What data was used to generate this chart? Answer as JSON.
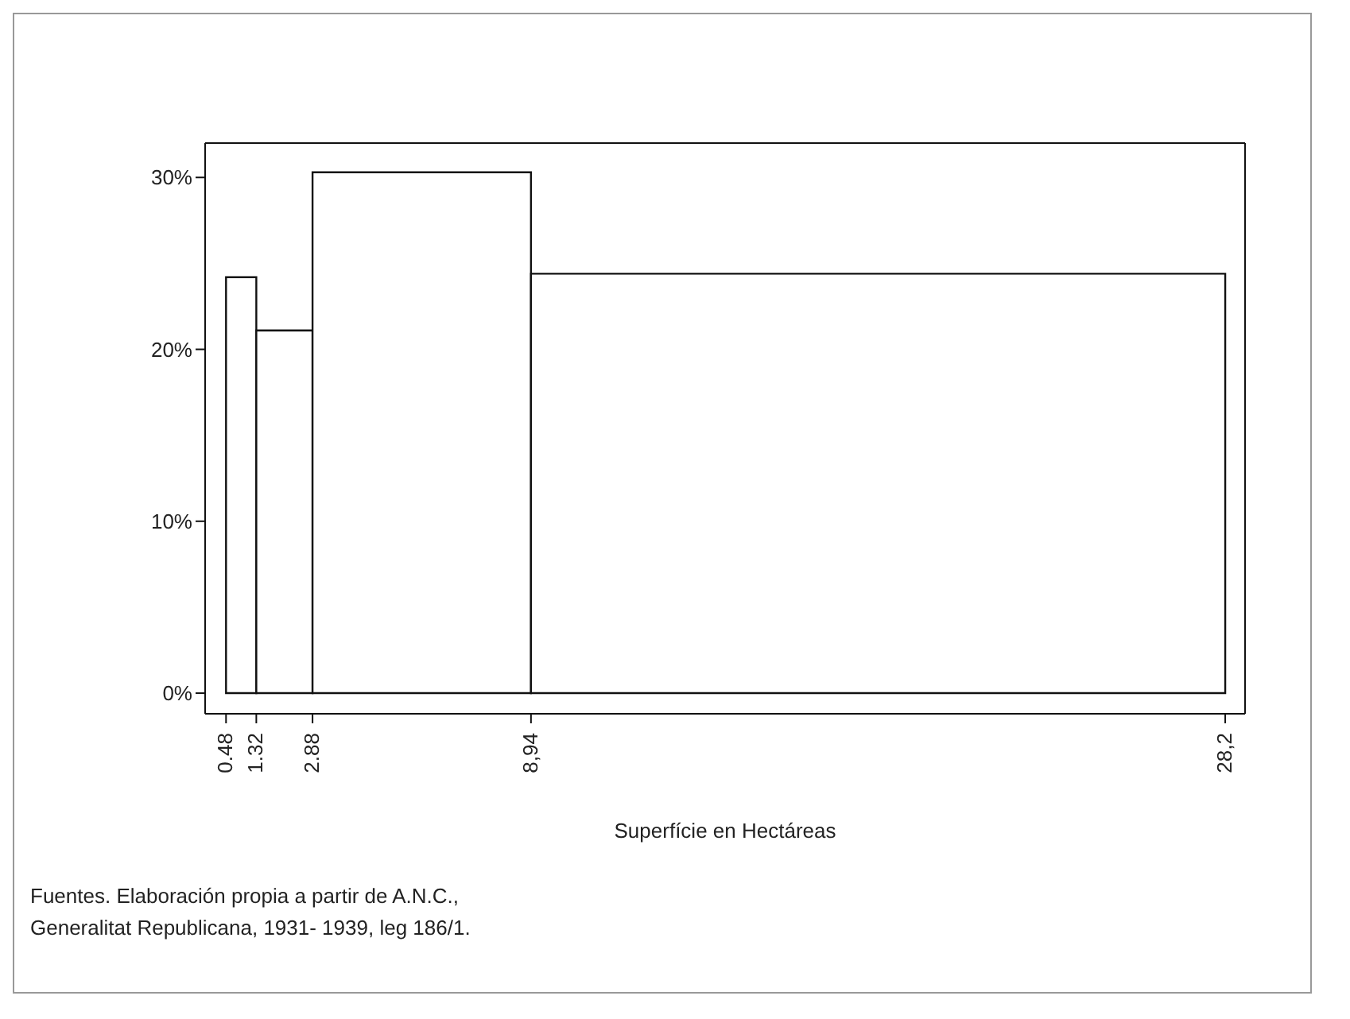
{
  "chart_data": {
    "type": "histogram",
    "xlabel": "Superfície en Hectáreas",
    "bins": [
      0.48,
      1.32,
      2.88,
      8.94,
      28.2
    ],
    "values": [
      24.2,
      21.1,
      30.3,
      24.4
    ],
    "color": "#ffffff",
    "xlim": [
      -0.1,
      28.75
    ],
    "xticks": [
      0.48,
      1.32,
      2.88,
      {
        "value": 8.94,
        "label": "8,94"
      },
      {
        "value": 28.2,
        "label": "28,2"
      }
    ],
    "ylim": [
      -1.2,
      32
    ],
    "yticks": [
      {
        "value": 0,
        "label": "0%"
      },
      {
        "value": 10,
        "label": "10%"
      },
      {
        "value": 20,
        "label": "20%"
      },
      {
        "value": 30,
        "label": "30%"
      }
    ],
    "annotations": [
      "Fuentes. Elaboración propia a partir de A.N.C., Generalitat Republicana, 1931- 1939, leg 186/1."
    ]
  }
}
